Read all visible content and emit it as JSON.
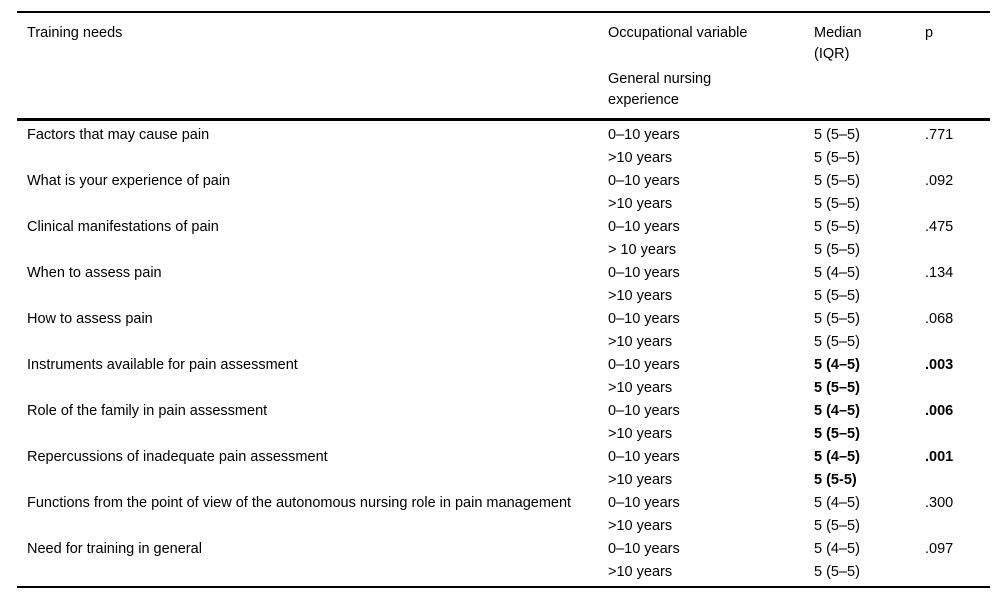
{
  "page": {
    "background": "#ffffff",
    "text_color": "#000000"
  },
  "table": {
    "headers": {
      "training_needs": "Training needs",
      "occupational_variable": "Occupational variable",
      "subheader": "General nursing experience",
      "median_iqr": "Median (IQR)",
      "p": "p"
    },
    "rows": [
      {
        "need": "Factors that may cause pain",
        "lines": [
          {
            "group": "0–10 years",
            "median": "5 (5–5)",
            "p": ".771",
            "bold": false
          },
          {
            "group": ">10 years",
            "median": "5 (5–5)",
            "p": "",
            "bold": false
          }
        ]
      },
      {
        "need": "What is your experience of pain",
        "lines": [
          {
            "group": "0–10 years",
            "median": "5 (5–5)",
            "p": ".092",
            "bold": false
          },
          {
            "group": ">10 years",
            "median": "5 (5–5)",
            "p": "",
            "bold": false
          }
        ]
      },
      {
        "need": "Clinical manifestations of pain",
        "lines": [
          {
            "group": "0–10 years",
            "median": "5 (5–5)",
            "p": ".475",
            "bold": false
          },
          {
            "group": "> 10 years",
            "median": "5 (5–5)",
            "p": "",
            "bold": false
          }
        ]
      },
      {
        "need": "When to assess pain",
        "lines": [
          {
            "group": "0–10 years",
            "median": "5 (4–5)",
            "p": ".134",
            "bold": false
          },
          {
            "group": ">10 years",
            "median": "5 (5–5)",
            "p": "",
            "bold": false
          }
        ]
      },
      {
        "need": "How to assess pain",
        "lines": [
          {
            "group": "0–10 years",
            "median": "5 (5–5)",
            "p": ".068",
            "bold": false
          },
          {
            "group": ">10 years",
            "median": "5 (5–5)",
            "p": "",
            "bold": false
          }
        ]
      },
      {
        "need": "Instruments available for pain assessment",
        "lines": [
          {
            "group": "0–10 years",
            "median": "5 (4–5)",
            "p": ".003",
            "bold": true
          },
          {
            "group": ">10 years",
            "median": "5 (5–5)",
            "p": "",
            "bold": true
          }
        ]
      },
      {
        "need": "Role of the family in pain assessment",
        "lines": [
          {
            "group": "0–10 years",
            "median": "5 (4–5)",
            "p": ".006",
            "bold": true
          },
          {
            "group": ">10 years",
            "median": "5 (5–5)",
            "p": "",
            "bold": true
          }
        ]
      },
      {
        "need": "Repercussions of inadequate pain assessment",
        "lines": [
          {
            "group": "0–10 years",
            "median": "5 (4–5)",
            "p": ".001",
            "bold": true
          },
          {
            "group": ">10 years",
            "median": "5 (5-5)",
            "p": "",
            "bold": true
          }
        ]
      },
      {
        "need": "Functions from the point of view of the autonomous nursing role in pain management",
        "lines": [
          {
            "group": "0–10 years",
            "median": "5 (4–5)",
            "p": ".300",
            "bold": false
          },
          {
            "group": ">10 years",
            "median": "5 (5–5)",
            "p": "",
            "bold": false
          }
        ]
      },
      {
        "need": "Need for training in general",
        "lines": [
          {
            "group": "0–10 years",
            "median": "5 (4–5)",
            "p": ".097",
            "bold": false
          },
          {
            "group": ">10 years",
            "median": "5 (5–5)",
            "p": "",
            "bold": false
          }
        ]
      }
    ]
  }
}
